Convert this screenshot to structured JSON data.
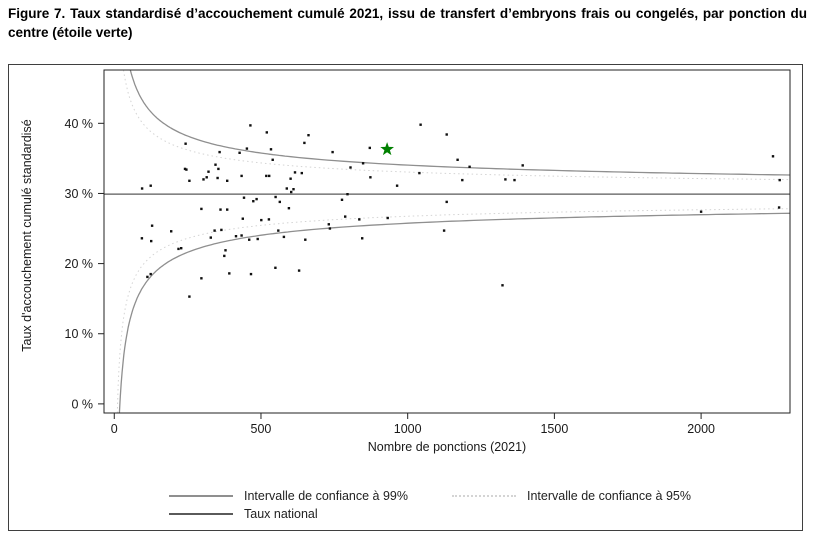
{
  "title": "Figure 7. Taux standardisé d’accouchement cumulé 2021, issu de transfert d’embryons frais ou congelés, par ponction du centre (étoile verte)",
  "colors": {
    "ci99": "#8f8f8f",
    "ci95": "#d4d4d4",
    "national_line": "#5a5a5a",
    "points": "#101010",
    "star": "#008000",
    "axis": "#222222"
  },
  "chart_data": {
    "type": "scatter",
    "title": "",
    "xlabel": "Nombre de ponctions (2021)",
    "ylabel": "Taux d'accouchement cumulé standardisé",
    "xlim": [
      -35,
      2303
    ],
    "ylim_percent": [
      -1.3,
      47.6
    ],
    "grid": false,
    "x_ticks": [
      {
        "v": 0,
        "label": "0"
      },
      {
        "v": 500,
        "label": "500"
      },
      {
        "v": 1000,
        "label": "1000"
      },
      {
        "v": 1500,
        "label": "1500"
      },
      {
        "v": 2000,
        "label": "2000"
      }
    ],
    "y_ticks": [
      {
        "v": 0,
        "label": "0 %"
      },
      {
        "v": 10,
        "label": "10 %"
      },
      {
        "v": 20,
        "label": "20 %"
      },
      {
        "v": 30,
        "label": "30 %"
      },
      {
        "v": 40,
        "label": "40 %"
      }
    ],
    "national_rate_percent": 29.9,
    "ci99_k": 131,
    "ci95_k": 99.5,
    "highlight_center": {
      "x": 930,
      "y": 36.3,
      "marker": "green-star",
      "color": "#008000"
    },
    "legend": [
      {
        "label": "Intervalle de confiance à 99%",
        "style": "solid",
        "color": "#8f8f8f"
      },
      {
        "label": "Intervalle de confiance à 95%",
        "style": "dotted",
        "color": "#d4d4d4"
      },
      {
        "label": "Taux national",
        "style": "solid",
        "color": "#5a5a5a"
      }
    ],
    "points": [
      [
        94,
        23.6
      ],
      [
        95,
        30.7
      ],
      [
        113,
        18.1
      ],
      [
        124,
        31.1
      ],
      [
        124,
        18.5
      ],
      [
        126,
        23.2
      ],
      [
        129,
        25.4
      ],
      [
        194,
        24.6
      ],
      [
        219,
        22.1
      ],
      [
        228,
        22.2
      ],
      [
        241,
        33.5
      ],
      [
        243,
        37.1
      ],
      [
        246,
        33.4
      ],
      [
        256,
        31.8
      ],
      [
        256,
        15.3
      ],
      [
        297,
        27.8
      ],
      [
        297,
        17.9
      ],
      [
        304,
        32.0
      ],
      [
        315,
        32.3
      ],
      [
        321,
        33.1
      ],
      [
        329,
        23.7
      ],
      [
        342,
        24.7
      ],
      [
        345,
        34.1
      ],
      [
        352,
        32.2
      ],
      [
        355,
        33.5
      ],
      [
        359,
        35.9
      ],
      [
        362,
        27.7
      ],
      [
        365,
        24.8
      ],
      [
        375,
        21.1
      ],
      [
        379,
        21.9
      ],
      [
        385,
        31.8
      ],
      [
        385,
        27.7
      ],
      [
        392,
        18.6
      ],
      [
        415,
        23.9
      ],
      [
        427,
        35.8
      ],
      [
        434,
        32.5
      ],
      [
        434,
        24.0
      ],
      [
        438,
        26.4
      ],
      [
        442,
        29.4
      ],
      [
        452,
        36.4
      ],
      [
        460,
        23.4
      ],
      [
        464,
        39.7
      ],
      [
        466,
        18.5
      ],
      [
        474,
        28.9
      ],
      [
        485,
        29.2
      ],
      [
        489,
        23.5
      ],
      [
        501,
        26.2
      ],
      [
        518,
        32.5
      ],
      [
        520,
        38.7
      ],
      [
        527,
        26.3
      ],
      [
        528,
        32.5
      ],
      [
        534,
        36.3
      ],
      [
        540,
        34.8
      ],
      [
        549,
        19.4
      ],
      [
        550,
        29.5
      ],
      [
        559,
        24.7
      ],
      [
        564,
        28.8
      ],
      [
        578,
        23.8
      ],
      [
        588,
        30.7
      ],
      [
        595,
        27.9
      ],
      [
        601,
        32.1
      ],
      [
        603,
        30.2
      ],
      [
        611,
        30.6
      ],
      [
        616,
        33.0
      ],
      [
        630,
        19.0
      ],
      [
        639,
        32.9
      ],
      [
        648,
        37.2
      ],
      [
        651,
        23.4
      ],
      [
        662,
        38.3
      ],
      [
        731,
        25.6
      ],
      [
        735,
        25.0
      ],
      [
        744,
        35.9
      ],
      [
        776,
        29.1
      ],
      [
        787,
        26.7
      ],
      [
        795,
        29.9
      ],
      [
        805,
        33.7
      ],
      [
        835,
        26.3
      ],
      [
        845,
        23.6
      ],
      [
        848,
        34.3
      ],
      [
        871,
        36.5
      ],
      [
        873,
        32.3
      ],
      [
        932,
        26.5
      ],
      [
        964,
        31.1
      ],
      [
        1040,
        32.9
      ],
      [
        1044,
        39.8
      ],
      [
        1124,
        24.7
      ],
      [
        1133,
        38.4
      ],
      [
        1133,
        28.8
      ],
      [
        1170,
        34.8
      ],
      [
        1186,
        31.9
      ],
      [
        1211,
        33.8
      ],
      [
        1323,
        16.9
      ],
      [
        1333,
        32.0
      ],
      [
        1364,
        31.9
      ],
      [
        1392,
        34.0
      ],
      [
        2000,
        27.4
      ],
      [
        2245,
        35.3
      ],
      [
        2266,
        28.0
      ],
      [
        2268,
        31.9
      ]
    ]
  }
}
